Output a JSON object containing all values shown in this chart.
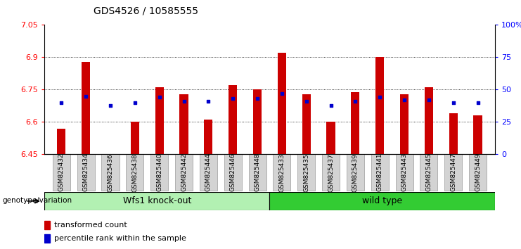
{
  "title": "GDS4526 / 10585555",
  "samples": [
    "GSM825432",
    "GSM825434",
    "GSM825436",
    "GSM825438",
    "GSM825440",
    "GSM825442",
    "GSM825444",
    "GSM825446",
    "GSM825448",
    "GSM825433",
    "GSM825435",
    "GSM825437",
    "GSM825439",
    "GSM825441",
    "GSM825443",
    "GSM825445",
    "GSM825447",
    "GSM825449"
  ],
  "red_values": [
    6.57,
    6.88,
    6.45,
    6.6,
    6.76,
    6.73,
    6.61,
    6.77,
    6.75,
    6.92,
    6.73,
    6.6,
    6.74,
    6.9,
    6.73,
    6.76,
    6.64,
    6.63
  ],
  "blue_pct": [
    40,
    45,
    38,
    40,
    44,
    41,
    41,
    43,
    43,
    47,
    41,
    38,
    41,
    44,
    42,
    42,
    40,
    40
  ],
  "group1_label": "Wfs1 knock-out",
  "group2_label": "wild type",
  "group1_count": 9,
  "group2_count": 9,
  "ymin": 6.45,
  "ymax": 7.05,
  "yticks": [
    6.45,
    6.6,
    6.75,
    6.9,
    7.05
  ],
  "right_yticks": [
    0,
    25,
    50,
    75,
    100
  ],
  "right_ylabels": [
    "0",
    "25",
    "50",
    "75",
    "100%"
  ],
  "bar_color": "#cc0000",
  "blue_color": "#0000cc",
  "group1_bg": "#b2f0b2",
  "group2_bg": "#33cc33",
  "tick_bg": "#d3d3d3",
  "legend_red": "transformed count",
  "legend_blue": "percentile rank within the sample"
}
